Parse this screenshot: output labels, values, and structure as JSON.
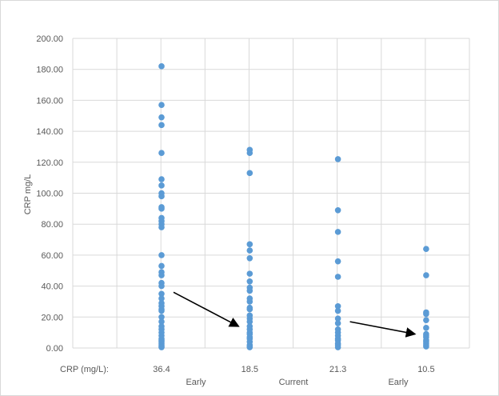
{
  "chart_data": {
    "type": "scatter",
    "title": "",
    "ylabel": "CRP mg/L",
    "ylim": [
      0,
      200
    ],
    "ytick_step": 20,
    "ytick_labels": [
      "0.00",
      "20.00",
      "40.00",
      "60.00",
      "80.00",
      "100.00",
      "120.00",
      "140.00",
      "160.00",
      "180.00",
      "200.00"
    ],
    "grid": true,
    "point_color": "#5b9bd5",
    "row_label": "CRP (mg/L):",
    "columns": [
      {
        "mean_label": "36.4",
        "values": [
          182,
          157,
          149,
          144,
          126,
          109,
          105,
          100,
          98,
          91,
          90,
          84,
          82,
          80,
          78,
          60,
          53,
          49,
          47,
          42,
          40,
          35,
          32,
          29,
          27,
          25,
          24,
          20,
          17,
          14,
          12,
          10,
          8,
          6,
          5,
          4,
          3,
          2,
          1,
          0.5
        ]
      },
      {
        "mean_label": "18.5",
        "values": [
          128,
          126,
          113,
          67,
          63,
          58,
          48,
          43,
          39,
          37,
          32,
          30,
          26,
          25,
          21,
          19,
          17,
          14,
          12,
          10,
          9,
          7,
          6,
          4,
          2,
          1,
          0.5
        ]
      },
      {
        "mean_label": "21.3",
        "values": [
          122,
          89,
          75,
          56,
          46,
          27,
          24,
          19,
          16,
          12,
          10,
          8,
          6,
          5,
          3,
          2,
          0.5
        ]
      },
      {
        "mean_label": "10.5",
        "values": [
          64,
          47,
          23,
          22,
          18,
          13,
          9,
          8,
          7,
          5,
          4,
          3,
          2,
          1
        ]
      }
    ],
    "group_labels": [
      "Early",
      "Current",
      "Early"
    ],
    "annotations": [
      {
        "type": "arrow",
        "from": {
          "column": 1,
          "value": 36
        },
        "to": {
          "column": 2,
          "value": 14
        }
      },
      {
        "type": "arrow",
        "from": {
          "column": 3,
          "value": 17
        },
        "to": {
          "column": 4,
          "value": 9
        }
      }
    ]
  }
}
